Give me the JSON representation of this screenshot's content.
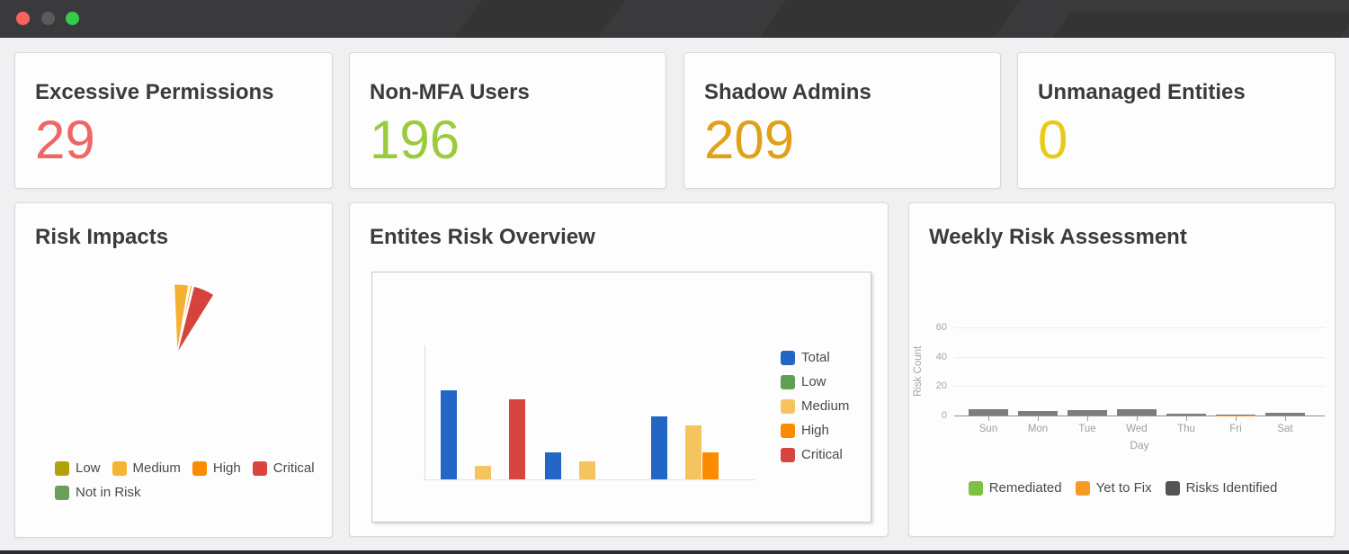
{
  "window": {
    "titlebar_color": "#3a3a3c",
    "traffic_lights": [
      "#f9625a",
      "#595b5c",
      "#35cb4b"
    ]
  },
  "stats": {
    "cards": [
      {
        "title": "Excessive Permissions",
        "value": "29",
        "value_color": "#ee6766"
      },
      {
        "title": "Non-MFA Users",
        "value": "196",
        "value_color": "#9bcb3c"
      },
      {
        "title": "Shadow Admins",
        "value": "209",
        "value_color": "#e0a118"
      },
      {
        "title": "Unmanaged Entities",
        "value": "0",
        "value_color": "#e8ca18"
      }
    ]
  },
  "cards": {
    "risk_impacts": {
      "title": "Risk Impacts"
    },
    "entities_overview": {
      "title": "Entites Risk Overview"
    },
    "weekly": {
      "title": "Weekly Risk Assessment"
    }
  },
  "chart_data": [
    {
      "id": "risk-impacts-pie",
      "type": "pie",
      "title": "Risk Impacts",
      "legend_position": "bottom-left",
      "legend": [
        {
          "label": "Low",
          "color": "#b0a30a"
        },
        {
          "label": "Medium",
          "color": "#f6b435"
        },
        {
          "label": "High",
          "color": "#f98c00"
        },
        {
          "label": "Critical",
          "color": "#d9453e"
        },
        {
          "label": "Not in Risk",
          "color": "#6b9e5a"
        }
      ],
      "visible_slices": [
        {
          "name": "Medium",
          "color": "#f6b133",
          "start_deg": -2.5,
          "end_deg": 9.5
        },
        {
          "name": "High",
          "color": "#f98c00",
          "start_deg": 11,
          "end_deg": 12.5
        },
        {
          "name": "Critical",
          "color": "#d6433d",
          "start_deg": 14,
          "end_deg": 32
        }
      ],
      "note": "narrow fan of slices, apex at bottom; no value labels visible"
    },
    {
      "id": "entities-risk-bar",
      "type": "bar",
      "title": "Entites Risk Overview",
      "categories": [
        "",
        "",
        ""
      ],
      "series": [
        {
          "name": "Total",
          "color": "#2267c5",
          "values": [
            10,
            3,
            7
          ]
        },
        {
          "name": "Low",
          "color": "#5f9e54",
          "values": [
            0,
            0,
            0
          ]
        },
        {
          "name": "Medium",
          "color": "#f6c45e",
          "values": [
            1.5,
            2,
            6
          ]
        },
        {
          "name": "High",
          "color": "#fb8c00",
          "values": [
            0,
            0,
            3
          ]
        },
        {
          "name": "Critical",
          "color": "#d6453f",
          "values": [
            9,
            0,
            0
          ]
        }
      ],
      "ylim": [
        0,
        150
      ],
      "legend_position": "right",
      "axis_labels_visible": false,
      "note": "no axis tick labels visible; values are relative estimates"
    },
    {
      "id": "weekly-risk-bar",
      "type": "bar",
      "title": "Weekly Risk Assessment",
      "categories": [
        "Sun",
        "Mon",
        "Tue",
        "Wed",
        "Thu",
        "Fri",
        "Sat"
      ],
      "xlabel": "Day",
      "ylabel": "Risk Count",
      "yticks": [
        0,
        20,
        40,
        60
      ],
      "ylim": [
        0,
        65
      ],
      "stacked": true,
      "grid": true,
      "legend_position": "bottom",
      "series": [
        {
          "name": "Remediated",
          "color": "#7cc142",
          "values": [
            0,
            0,
            0,
            0,
            0,
            0,
            0
          ]
        },
        {
          "name": "Yet to Fix",
          "color": "#f59b23",
          "values": [
            0,
            0,
            0,
            0,
            0,
            0.3,
            0
          ]
        },
        {
          "name": "Risks Identified",
          "color": "#7d7d7f",
          "values": [
            4,
            3,
            3.5,
            4.5,
            1.5,
            0.3,
            2
          ]
        }
      ],
      "legend": [
        {
          "label": "Remediated",
          "color": "#7cc142"
        },
        {
          "label": "Yet to Fix",
          "color": "#f59b23"
        },
        {
          "label": "Risks Identified",
          "color": "#545456"
        }
      ]
    }
  ]
}
